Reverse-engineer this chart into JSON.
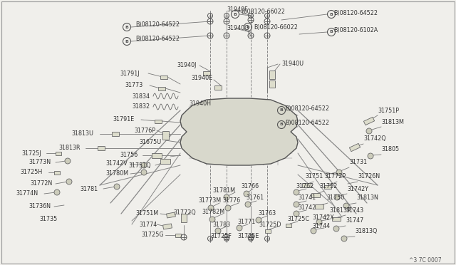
{
  "bg_color": "#f0efeb",
  "line_color": "#666666",
  "text_color": "#333333",
  "diagram_code": "^3 7C 0007",
  "figsize": [
    6.4,
    3.72
  ],
  "dpi": 100,
  "xlim": [
    0,
    640
  ],
  "ylim": [
    0,
    372
  ]
}
